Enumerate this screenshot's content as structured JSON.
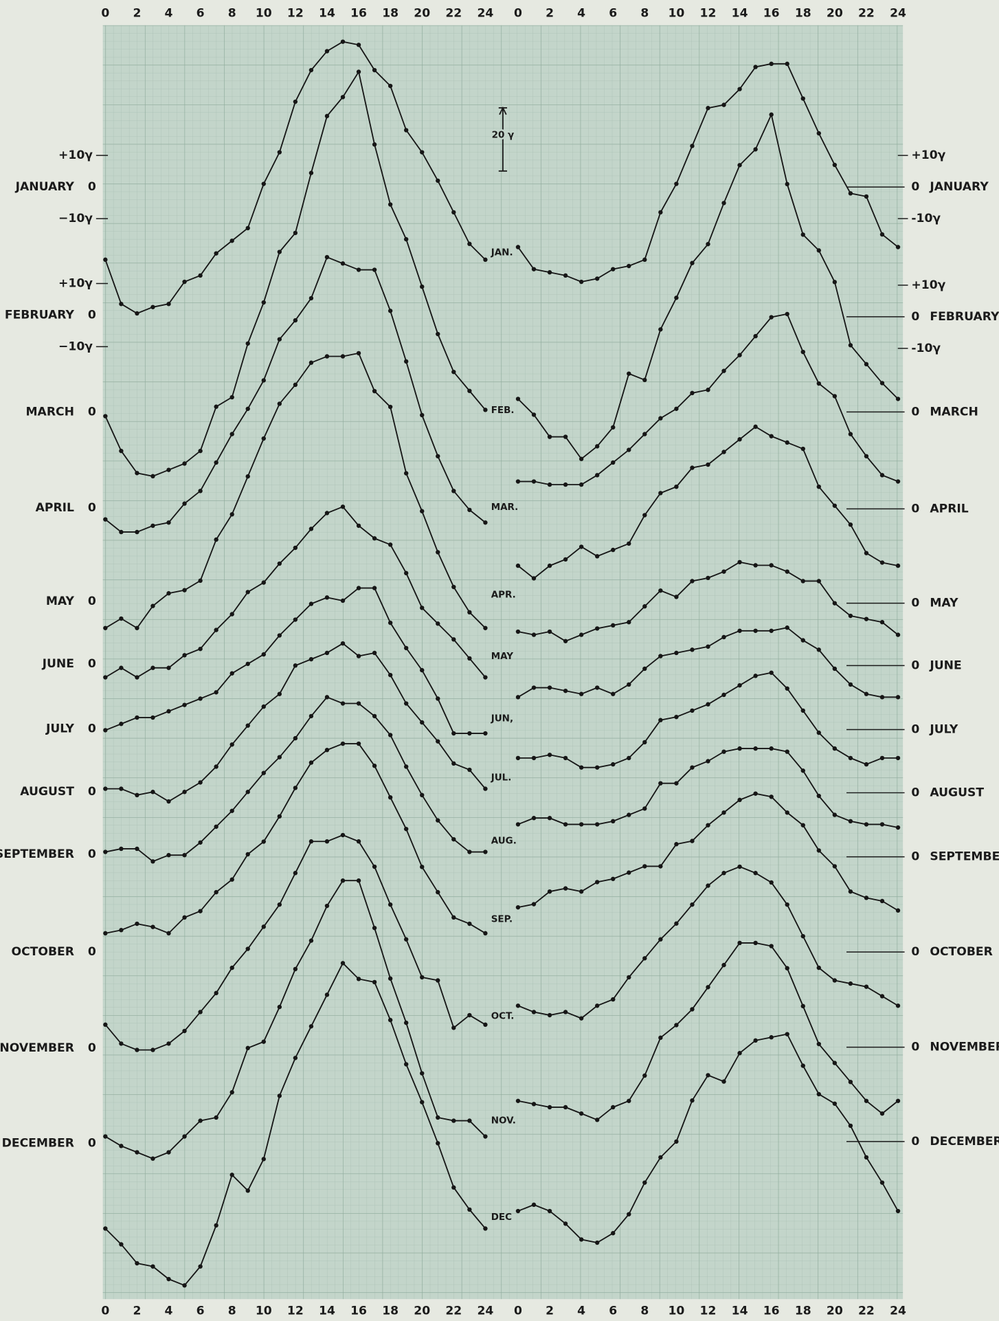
{
  "chart_data": [
    {
      "type": "line",
      "color": "#161616",
      "x": [
        0,
        1,
        2,
        3,
        4,
        5,
        6,
        7,
        8,
        9,
        10,
        11,
        12,
        13,
        14,
        15,
        16,
        17,
        18,
        19,
        20,
        21,
        22,
        23,
        24
      ],
      "xticks": [
        0,
        2,
        4,
        6,
        8,
        10,
        12,
        14,
        16,
        18,
        20,
        22,
        24
      ],
      "series": [
        {
          "name": "JANUARY",
          "yticks": [
            {
              "value": 10,
              "label": "+10γ"
            },
            0,
            {
              "value": -10,
              "label": "−10γ"
            }
          ],
          "values": [
            -23,
            -37,
            -40,
            -38,
            -37,
            -30,
            -28,
            -21,
            -17,
            -13,
            1,
            11,
            27,
            37,
            43,
            46,
            45,
            37,
            32,
            18,
            11,
            2,
            -8,
            -18,
            -23
          ]
        },
        {
          "name": "FEBRUARY",
          "yticks": [
            {
              "value": 10,
              "label": "+10γ"
            },
            0,
            {
              "value": -10,
              "label": "−10γ"
            }
          ],
          "values": [
            -32,
            -43,
            -50,
            -51,
            -49,
            -47,
            -43,
            -29,
            -26,
            -9,
            4,
            20,
            26,
            45,
            63,
            69,
            77,
            54,
            35,
            24,
            9,
            -6,
            -18,
            -24,
            -30
          ]
        },
        {
          "name": "MARCH",
          "yticks": [
            0
          ],
          "values": [
            -34,
            -38,
            -38,
            -36,
            -35,
            -29,
            -25,
            -16,
            -7,
            1,
            10,
            23,
            29,
            36,
            49,
            47,
            45,
            45,
            32,
            16,
            -1,
            -14,
            -25,
            -31,
            -35
          ]
        },
        {
          "name": "APRIL",
          "yticks": [
            0
          ],
          "values": [
            -38,
            -35,
            -38,
            -31,
            -27,
            -26,
            -23,
            -10,
            -2,
            10,
            22,
            33,
            39,
            46,
            48,
            48,
            49,
            37,
            32,
            11,
            -1,
            -14,
            -25,
            -33,
            -38
          ]
        },
        {
          "name": "MAY",
          "yticks": [
            0
          ],
          "values": [
            -24,
            -21,
            -24,
            -21,
            -21,
            -17,
            -15,
            -9,
            -4,
            3,
            6,
            12,
            17,
            23,
            28,
            30,
            24,
            20,
            18,
            9,
            -2,
            -7,
            -12,
            -18,
            -24
          ]
        },
        {
          "name": "JUNE",
          "yticks": [
            0
          ],
          "values": [
            -21,
            -19,
            -17,
            -17,
            -15,
            -13,
            -11,
            -9,
            -3,
            0,
            3,
            9,
            14,
            19,
            21,
            20,
            24,
            24,
            13,
            5,
            -2,
            -11,
            -22,
            -22,
            -22
          ]
        },
        {
          "name": "JULY",
          "yticks": [
            0
          ],
          "values": [
            -19,
            -19,
            -21,
            -20,
            -23,
            -20,
            -17,
            -12,
            -5,
            1,
            7,
            11,
            20,
            22,
            24,
            27,
            23,
            24,
            17,
            8,
            2,
            -4,
            -11,
            -13,
            -19
          ]
        },
        {
          "name": "AUGUST",
          "yticks": [
            0
          ],
          "values": [
            -19,
            -18,
            -18,
            -22,
            -20,
            -20,
            -16,
            -11,
            -6,
            0,
            6,
            11,
            17,
            24,
            30,
            28,
            28,
            24,
            18,
            8,
            -1,
            -9,
            -15,
            -19,
            -19
          ]
        },
        {
          "name": "SEPTEMBER",
          "yticks": [
            0
          ],
          "values": [
            -25,
            -24,
            -22,
            -23,
            -25,
            -20,
            -18,
            -12,
            -8,
            0,
            4,
            12,
            21,
            29,
            33,
            35,
            35,
            28,
            18,
            8,
            -4,
            -12,
            -20,
            -22,
            -25
          ]
        },
        {
          "name": "OCTOBER",
          "yticks": [
            0
          ],
          "values": [
            -23,
            -29,
            -31,
            -31,
            -29,
            -25,
            -19,
            -13,
            -5,
            1,
            8,
            15,
            25,
            35,
            35,
            37,
            35,
            27,
            15,
            4,
            -8,
            -9,
            -24,
            -20,
            -23
          ]
        },
        {
          "name": "NOVEMBER",
          "yticks": [
            0
          ],
          "values": [
            -28,
            -31,
            -33,
            -35,
            -33,
            -28,
            -23,
            -22,
            -14,
            0,
            2,
            13,
            25,
            34,
            45,
            53,
            53,
            38,
            22,
            8,
            -8,
            -22,
            -23,
            -23,
            -28
          ]
        },
        {
          "name": "DECEMBER",
          "yticks": [
            0
          ],
          "values": [
            -27,
            -32,
            -38,
            -39,
            -43,
            -45,
            -39,
            -26,
            -10,
            -15,
            -5,
            15,
            27,
            37,
            47,
            57,
            52,
            51,
            39,
            25,
            13,
            0,
            -14,
            -21,
            -27
          ]
        }
      ]
    },
    {
      "type": "line",
      "color": "#161616",
      "x": [
        0,
        1,
        2,
        3,
        4,
        5,
        6,
        7,
        8,
        9,
        10,
        11,
        12,
        13,
        14,
        15,
        16,
        17,
        18,
        19,
        20,
        21,
        22,
        23,
        24
      ],
      "xticks": [
        0,
        2,
        4,
        6,
        8,
        10,
        12,
        14,
        16,
        18,
        20,
        22,
        24
      ],
      "series": [
        {
          "name": "JANUARY",
          "label": "JAN.",
          "yticks": [
            {
              "value": 10,
              "label": "+10γ"
            },
            0,
            {
              "value": -10,
              "label": "-10γ"
            }
          ],
          "values": [
            -19,
            -26,
            -27,
            -28,
            -30,
            -29,
            -26,
            -25,
            -23,
            -8,
            1,
            13,
            25,
            26,
            31,
            38,
            39,
            39,
            28,
            17,
            7,
            -2,
            -3,
            -15,
            -19
          ]
        },
        {
          "name": "FEBRUARY",
          "label": "FEB.",
          "yticks": [
            {
              "value": 10,
              "label": "+10γ"
            },
            0,
            {
              "value": -10,
              "label": "-10γ"
            }
          ],
          "values": [
            -26,
            -31,
            -38,
            -38,
            -45,
            -41,
            -35,
            -18,
            -20,
            -4,
            6,
            17,
            23,
            36,
            48,
            53,
            64,
            42,
            26,
            21,
            11,
            -9,
            -15,
            -21,
            -26
          ]
        },
        {
          "name": "MARCH",
          "label": "MAR.",
          "yticks": [
            0
          ],
          "values": [
            -22,
            -22,
            -23,
            -23,
            -23,
            -20,
            -16,
            -12,
            -7,
            -2,
            1,
            6,
            7,
            13,
            18,
            24,
            30,
            31,
            19,
            9,
            5,
            -7,
            -14,
            -20,
            -22
          ]
        },
        {
          "name": "APRIL",
          "label": "APR.",
          "yticks": [
            0
          ],
          "values": [
            -18,
            -22,
            -18,
            -16,
            -12,
            -15,
            -13,
            -11,
            -2,
            5,
            7,
            13,
            14,
            18,
            22,
            26,
            23,
            21,
            19,
            7,
            1,
            -5,
            -14,
            -17,
            -18
          ]
        },
        {
          "name": "MAY",
          "label": "MAY",
          "yticks": [
            0
          ],
          "values": [
            -9,
            -10,
            -9,
            -12,
            -10,
            -8,
            -7,
            -6,
            -1,
            4,
            2,
            7,
            8,
            10,
            13,
            12,
            12,
            10,
            7,
            7,
            0,
            -4,
            -5,
            -6,
            -10
          ]
        },
        {
          "name": "JUNE",
          "label": "JUN,",
          "yticks": [
            0
          ],
          "values": [
            -10,
            -7,
            -7,
            -8,
            -9,
            -7,
            -9,
            -6,
            -1,
            3,
            4,
            5,
            6,
            9,
            11,
            11,
            11,
            12,
            8,
            5,
            -1,
            -6,
            -9,
            -10,
            -10
          ]
        },
        {
          "name": "JULY",
          "label": "JUL.",
          "yticks": [
            0
          ],
          "values": [
            -9,
            -9,
            -8,
            -9,
            -12,
            -12,
            -11,
            -9,
            -4,
            3,
            4,
            6,
            8,
            11,
            14,
            17,
            18,
            13,
            6,
            -1,
            -6,
            -9,
            -11,
            -9,
            -9
          ]
        },
        {
          "name": "AUGUST",
          "label": "AUG.",
          "yticks": [
            0
          ],
          "values": [
            -10,
            -8,
            -8,
            -10,
            -10,
            -10,
            -9,
            -7,
            -5,
            3,
            3,
            8,
            10,
            13,
            14,
            14,
            14,
            13,
            7,
            -1,
            -7,
            -9,
            -10,
            -10,
            -11
          ]
        },
        {
          "name": "SEPTEMBER",
          "label": "SEP.",
          "yticks": [
            0
          ],
          "values": [
            -16,
            -15,
            -11,
            -10,
            -11,
            -8,
            -7,
            -5,
            -3,
            -3,
            4,
            5,
            10,
            14,
            18,
            20,
            19,
            14,
            10,
            2,
            -3,
            -11,
            -13,
            -14,
            -17
          ]
        },
        {
          "name": "OCTOBER",
          "label": "OCT.",
          "yticks": [
            0
          ],
          "values": [
            -17,
            -19,
            -20,
            -19,
            -21,
            -17,
            -15,
            -8,
            -2,
            4,
            9,
            15,
            21,
            25,
            27,
            25,
            22,
            15,
            5,
            -5,
            -9,
            -10,
            -11,
            -14,
            -17
          ]
        },
        {
          "name": "NOVEMBER",
          "label": "NOV.",
          "yticks": [
            0
          ],
          "values": [
            -17,
            -18,
            -19,
            -19,
            -21,
            -23,
            -19,
            -17,
            -9,
            3,
            7,
            12,
            19,
            26,
            33,
            33,
            32,
            25,
            13,
            1,
            -5,
            -11,
            -17,
            -21,
            -17
          ]
        },
        {
          "name": "DECEMBER",
          "label": "DEC",
          "yticks": [
            0
          ],
          "values": [
            -22,
            -20,
            -22,
            -26,
            -31,
            -32,
            -29,
            -23,
            -13,
            -5,
            0,
            13,
            21,
            19,
            28,
            32,
            33,
            34,
            24,
            15,
            12,
            5,
            -5,
            -13,
            -22
          ]
        }
      ]
    }
  ],
  "scale_bar": {
    "value": 20,
    "label": "20 γ"
  }
}
